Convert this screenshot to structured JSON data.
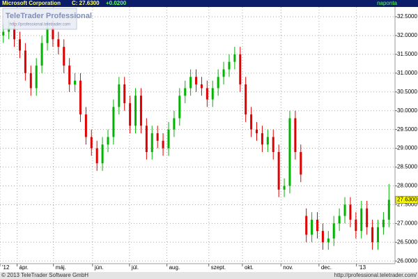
{
  "header": {
    "name": "Microsoft Corporation",
    "close_label": "C: 27.6300",
    "change": "+0.0200",
    "interval": "naponta"
  },
  "watermark": {
    "title": "TeleTrader Professional",
    "url": "http://professional.teletrader.com"
  },
  "footer": {
    "copyright": "© 2013 TeleTrader Software GmbH",
    "url": "http://professional.teletrader.com/"
  },
  "chart_data": {
    "type": "candlestick",
    "up_color": "#00b400",
    "down_color": "#e00000",
    "grid": true,
    "xlim": [
      -0.6,
      71.1
    ],
    "xticks": [
      {
        "value": -0.6,
        "label": "'12"
      },
      {
        "value": 2.5,
        "label": "ápr."
      },
      {
        "value": 9.1,
        "label": "máj."
      },
      {
        "value": 16.2,
        "label": "jún."
      },
      {
        "value": 22.9,
        "label": "júl."
      },
      {
        "value": 29.7,
        "label": "aug."
      },
      {
        "value": 37.3,
        "label": "szept."
      },
      {
        "value": 43.4,
        "label": "okt."
      },
      {
        "value": 50.4,
        "label": "nov."
      },
      {
        "value": 57.3,
        "label": "dec."
      },
      {
        "value": 64.1,
        "label": "'13"
      }
    ],
    "ylim": [
      25.93,
      32.76
    ],
    "yticks": [
      {
        "value": 26,
        "label": "26.0000"
      },
      {
        "value": 26.5,
        "label": "26.5000"
      },
      {
        "value": 27,
        "label": "27.0000"
      },
      {
        "value": 27.5,
        "label": "27.5000"
      },
      {
        "value": 28,
        "label": "28.0000"
      },
      {
        "value": 28.5,
        "label": "28.5000"
      },
      {
        "value": 29,
        "label": "29.0000"
      },
      {
        "value": 29.5,
        "label": "29.5000"
      },
      {
        "value": 30,
        "label": "30.0000"
      },
      {
        "value": 30.5,
        "label": "30.5000"
      },
      {
        "value": 31,
        "label": "31.0000"
      },
      {
        "value": 31.5,
        "label": "31.5000"
      },
      {
        "value": 32,
        "label": "32.0000"
      },
      {
        "value": 32.5,
        "label": "32.5000"
      }
    ],
    "last_marker": {
      "value": 27.63,
      "label": "27.6300"
    },
    "open": [
      32.0,
      32.1,
      32.2,
      31.9,
      31.6,
      31.0,
      30.6,
      31.2,
      31.8,
      32.2,
      31.9,
      31.7,
      31.2,
      30.7,
      30.8,
      29.9,
      29.3,
      29.0,
      28.6,
      29.1,
      29.3,
      30.1,
      30.7,
      30.2,
      29.6,
      30.4,
      29.6,
      28.9,
      29.4,
      29.2,
      29.0,
      29.5,
      29.8,
      30.4,
      30.6,
      30.9,
      30.7,
      30.6,
      30.3,
      30.6,
      30.9,
      31.1,
      31.3,
      31.5,
      30.7,
      29.9,
      29.5,
      29.4,
      29.1,
      29.3,
      28.9,
      27.9,
      28.0,
      29.8,
      28.9,
      27.2,
      26.7,
      27.1,
      26.8,
      26.5,
      26.6,
      27.0,
      27.2,
      27.5,
      27.1,
      26.8,
      27.4,
      26.9,
      26.5,
      26.9,
      27.1
    ],
    "high": [
      32.3,
      32.4,
      32.4,
      32.1,
      31.8,
      31.2,
      31.4,
      32.0,
      32.4,
      32.4,
      32.1,
      31.9,
      31.4,
      31.0,
      31.0,
      30.1,
      29.5,
      29.2,
      29.3,
      29.5,
      30.3,
      30.9,
      30.9,
      30.4,
      30.6,
      30.6,
      29.8,
      29.6,
      29.6,
      29.4,
      29.7,
      30.0,
      30.6,
      30.8,
      31.1,
      31.1,
      30.9,
      30.8,
      30.8,
      31.1,
      31.3,
      31.5,
      31.7,
      31.7,
      30.9,
      30.1,
      29.7,
      29.6,
      29.5,
      29.5,
      29.1,
      28.2,
      30.0,
      30.0,
      29.1,
      27.4,
      27.3,
      27.3,
      27.0,
      26.8,
      27.2,
      27.4,
      27.7,
      27.7,
      27.3,
      27.6,
      27.6,
      27.1,
      27.1,
      27.3,
      28.05
    ],
    "low": [
      31.8,
      31.9,
      31.7,
      31.4,
      30.8,
      30.4,
      30.4,
      31.0,
      31.6,
      31.7,
      31.5,
      31.0,
      30.5,
      30.5,
      29.7,
      29.1,
      28.8,
      28.4,
      28.4,
      28.9,
      29.1,
      29.9,
      30.0,
      29.4,
      29.4,
      29.4,
      28.7,
      28.7,
      29.0,
      28.8,
      28.8,
      29.3,
      29.6,
      30.2,
      30.4,
      30.5,
      30.4,
      30.1,
      30.1,
      30.4,
      30.7,
      30.9,
      31.1,
      30.5,
      29.7,
      29.3,
      29.2,
      28.9,
      28.9,
      28.7,
      27.7,
      27.7,
      27.8,
      28.7,
      28.1,
      26.5,
      26.5,
      26.6,
      26.3,
      26.3,
      26.4,
      26.8,
      27.0,
      26.9,
      26.6,
      26.6,
      26.7,
      26.3,
      26.3,
      26.7,
      26.9
    ],
    "close": [
      32.1,
      32.2,
      31.9,
      31.6,
      31.0,
      30.6,
      31.2,
      31.8,
      32.2,
      31.9,
      31.7,
      31.2,
      30.7,
      30.8,
      29.9,
      29.3,
      29.0,
      28.6,
      29.1,
      29.3,
      30.1,
      30.7,
      30.2,
      29.6,
      30.4,
      29.6,
      28.9,
      29.4,
      29.2,
      29.0,
      29.5,
      29.8,
      30.4,
      30.6,
      30.9,
      30.7,
      30.6,
      30.3,
      30.6,
      30.9,
      31.1,
      31.3,
      31.5,
      30.7,
      29.9,
      29.5,
      29.4,
      29.1,
      29.3,
      28.9,
      27.9,
      28.0,
      29.8,
      28.9,
      28.3,
      26.7,
      27.1,
      26.8,
      26.5,
      26.6,
      27.0,
      27.2,
      27.5,
      27.1,
      26.8,
      27.4,
      26.9,
      26.5,
      26.9,
      27.1,
      27.63
    ]
  }
}
